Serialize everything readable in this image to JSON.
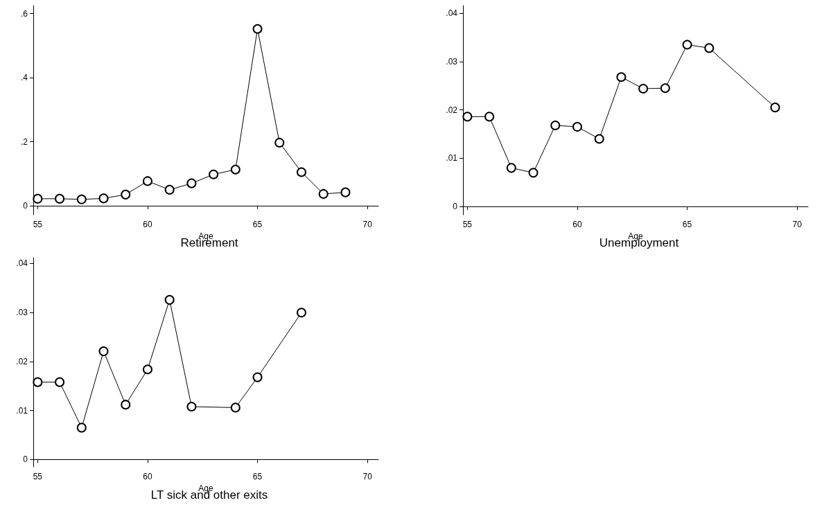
{
  "chart_data": [
    {
      "type": "line",
      "title": "Retirement",
      "xlabel": "Age",
      "marker": "circle",
      "grid": false,
      "xlim": [
        54.8,
        70.5
      ],
      "xticks": [
        55,
        60,
        65,
        70
      ],
      "ylim": [
        -0.028,
        0.625
      ],
      "yticks": [
        {
          "value": 0,
          "label": "0"
        },
        {
          "value": 0.2,
          "label": ".2"
        },
        {
          "value": 0.4,
          "label": ".4"
        },
        {
          "value": 0.6,
          "label": ".6"
        }
      ],
      "series": [
        {
          "color": "#000000",
          "x": [
            55,
            56,
            57,
            58,
            59,
            60,
            61,
            62,
            63,
            64,
            65,
            66,
            67,
            68,
            69
          ],
          "values": [
            0.022,
            0.022,
            0.02,
            0.023,
            0.035,
            0.077,
            0.05,
            0.07,
            0.098,
            0.113,
            0.552,
            0.197,
            0.105,
            0.037,
            0.042
          ]
        }
      ]
    },
    {
      "type": "line",
      "title": "Unemployment",
      "xlabel": "Age",
      "marker": "circle",
      "grid": false,
      "xlim": [
        54.8,
        70.5
      ],
      "xticks": [
        55,
        60,
        65,
        70
      ],
      "ylim": [
        -0.0017,
        0.0416
      ],
      "yticks": [
        {
          "value": 0,
          "label": "0"
        },
        {
          "value": 0.01,
          "label": ".01"
        },
        {
          "value": 0.02,
          "label": ".02"
        },
        {
          "value": 0.03,
          "label": ".03"
        },
        {
          "value": 0.04,
          "label": ".04"
        }
      ],
      "series": [
        {
          "color": "#000000",
          "x": [
            55,
            56,
            57,
            58,
            59,
            60,
            61,
            62,
            63,
            64,
            65,
            66,
            69
          ],
          "values": [
            0.0186,
            0.0186,
            0.008,
            0.007,
            0.0168,
            0.0165,
            0.014,
            0.0268,
            0.0244,
            0.0245,
            0.0335,
            0.0328,
            0.0205
          ]
        }
      ]
    },
    {
      "type": "line",
      "title": "LT sick and other exits",
      "xlabel": "Age",
      "marker": "circle",
      "grid": false,
      "xlim": [
        54.8,
        70.5
      ],
      "xticks": [
        55,
        60,
        65,
        70
      ],
      "ylim": [
        -0.0015,
        0.0412
      ],
      "yticks": [
        {
          "value": 0,
          "label": "0"
        },
        {
          "value": 0.01,
          "label": ".01"
        },
        {
          "value": 0.02,
          "label": ".02"
        },
        {
          "value": 0.03,
          "label": ".03"
        },
        {
          "value": 0.04,
          "label": ".04"
        }
      ],
      "series": [
        {
          "color": "#000000",
          "x": [
            55,
            56,
            57,
            58,
            59,
            60,
            61,
            62,
            64,
            65,
            67
          ],
          "values": [
            0.0158,
            0.0158,
            0.0065,
            0.0221,
            0.0112,
            0.0184,
            0.0326,
            0.0108,
            0.0106,
            0.0168,
            0.03
          ]
        }
      ]
    }
  ]
}
